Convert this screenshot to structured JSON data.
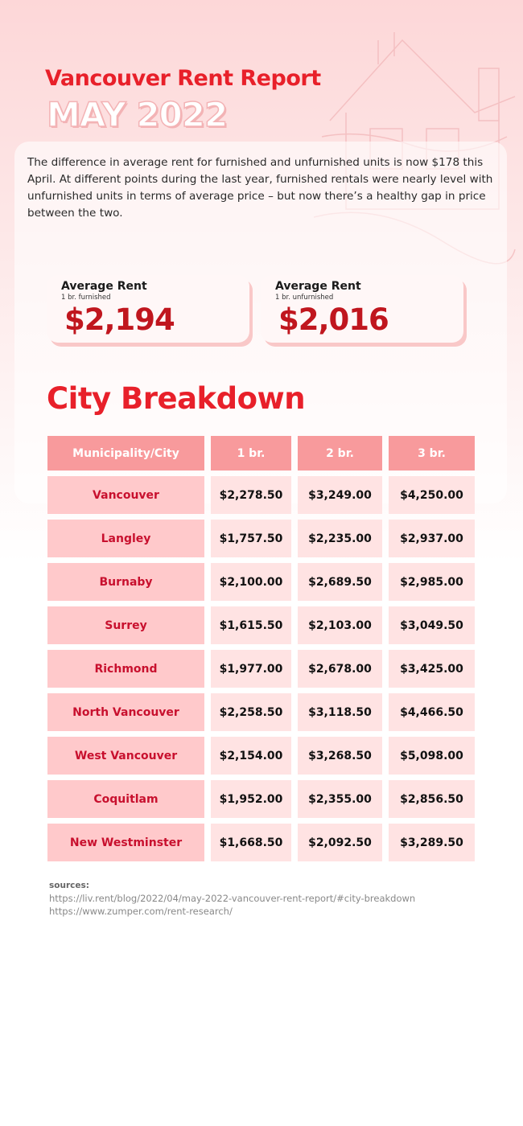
{
  "header": {
    "title": "Vancouver Rent Report",
    "subtitle": "MAY 2022"
  },
  "intro": "The difference in average rent for furnished and unfurnished units is now $178 this April. At different points during the last year, furnished rentals were nearly level with unfurnished units in terms of average price – but now there’s a healthy gap in price between the two.",
  "cards": [
    {
      "label": "Average Rent",
      "sublabel": "1 br. furnished",
      "value": "$2,194"
    },
    {
      "label": "Average Rent",
      "sublabel": "1 br. unfurnished",
      "value": "$2,016"
    }
  ],
  "section_title": "City Breakdown",
  "table": {
    "columns": [
      "Municipality/City",
      "1 br.",
      "2 br.",
      "3 br."
    ],
    "rows": [
      [
        "Vancouver",
        "$2,278.50",
        "$3,249.00",
        "$4,250.00"
      ],
      [
        "Langley",
        "$1,757.50",
        "$2,235.00",
        "$2,937.00"
      ],
      [
        "Burnaby",
        "$2,100.00",
        "$2,689.50",
        "$2,985.00"
      ],
      [
        "Surrey",
        "$1,615.50",
        "$2,103.00",
        "$3,049.50"
      ],
      [
        "Richmond",
        "$1,977.00",
        "$2,678.00",
        "$3,425.00"
      ],
      [
        "North Vancouver",
        "$2,258.50",
        "$3,118.50",
        "$4,466.50"
      ],
      [
        "West Vancouver",
        "$2,154.00",
        "$3,268.50",
        "$5,098.00"
      ],
      [
        "Coquitlam",
        "$1,952.00",
        "$2,355.00",
        "$2,856.50"
      ],
      [
        "New Westminster",
        "$1,668.50",
        "$2,092.50",
        "$3,289.50"
      ]
    ]
  },
  "sources": {
    "label": "sources:",
    "links": [
      "https://liv.rent/blog/2022/04/may-2022-vancouver-rent-report/#city-breakdown",
      "https://www.zumper.com/rent-research/"
    ]
  }
}
